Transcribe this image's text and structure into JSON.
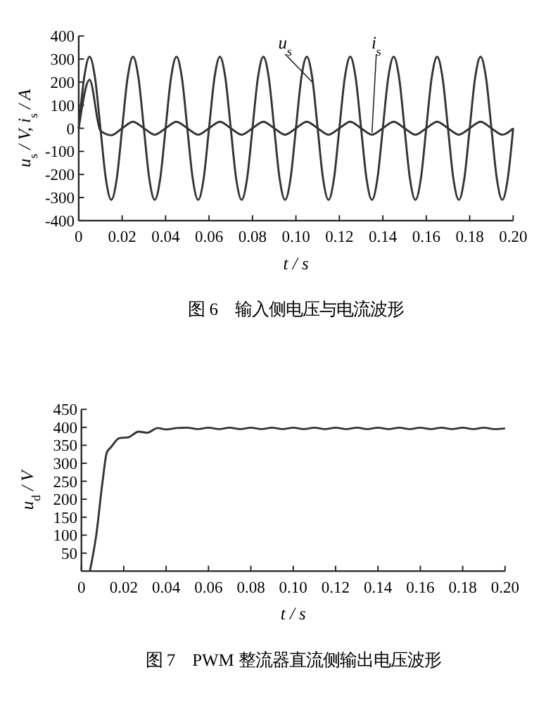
{
  "chart_data": [
    {
      "type": "line",
      "title": "图 6　输入侧电压与电流波形",
      "xlabel": "t / s",
      "ylabel": "u$_{s}$ / V, i$_{s}$ / A",
      "xlim": [
        0,
        0.2
      ],
      "xticks": [
        {
          "value": 0,
          "label": "0"
        },
        {
          "value": 0.02,
          "label": "0.02"
        },
        {
          "value": 0.04,
          "label": "0.04"
        },
        {
          "value": 0.06,
          "label": "0.06"
        },
        {
          "value": 0.08,
          "label": "0.08"
        },
        {
          "value": 0.1,
          "label": "0.10"
        },
        {
          "value": 0.12,
          "label": "0.12"
        },
        {
          "value": 0.14,
          "label": "0.14"
        },
        {
          "value": 0.16,
          "label": "0.16"
        },
        {
          "value": 0.18,
          "label": "0.18"
        },
        {
          "value": 0.2,
          "label": "0.20"
        }
      ],
      "ylim": [
        -400,
        400
      ],
      "yticks": [
        -400,
        -300,
        -200,
        -100,
        0,
        100,
        200,
        300,
        400
      ],
      "series": [
        {
          "name": "u$_{s}$",
          "color": "#333333",
          "x": [
            0,
            0.0025,
            0.005,
            0.0075,
            0.01,
            0.0125,
            0.015,
            0.0175,
            0.02,
            0.0225,
            0.025,
            0.0275,
            0.03,
            0.0325,
            0.035,
            0.0375,
            0.04,
            0.0425,
            0.045,
            0.0475,
            0.05,
            0.0525,
            0.055,
            0.0575,
            0.06,
            0.0625,
            0.065,
            0.0675,
            0.07,
            0.0725,
            0.075,
            0.0775,
            0.08,
            0.0825,
            0.085,
            0.0875,
            0.09,
            0.0925,
            0.095,
            0.0975,
            0.1,
            0.1025,
            0.105,
            0.1075,
            0.11,
            0.1125,
            0.115,
            0.1175,
            0.12,
            0.1225,
            0.125,
            0.1275,
            0.13,
            0.1325,
            0.135,
            0.1375,
            0.14,
            0.1425,
            0.145,
            0.1475,
            0.15,
            0.1525,
            0.155,
            0.1575,
            0.16,
            0.1625,
            0.165,
            0.1675,
            0.17,
            0.1725,
            0.175,
            0.1775,
            0.18,
            0.1825,
            0.185,
            0.1875,
            0.19,
            0.1925,
            0.195,
            0.1975,
            0.2
          ],
          "values": [
            0,
            219,
            310,
            219,
            0,
            -219,
            -310,
            -219,
            0,
            219,
            310,
            219,
            0,
            -219,
            -310,
            -219,
            0,
            219,
            310,
            219,
            0,
            -219,
            -310,
            -219,
            0,
            219,
            310,
            219,
            0,
            -219,
            -310,
            -219,
            0,
            219,
            310,
            219,
            0,
            -219,
            -310,
            -219,
            0,
            219,
            310,
            219,
            0,
            -219,
            -310,
            -219,
            0,
            219,
            310,
            219,
            0,
            -219,
            -310,
            -219,
            0,
            219,
            310,
            219,
            0,
            -219,
            -310,
            -219,
            0,
            219,
            310,
            219,
            0,
            -219,
            -310,
            -219,
            0,
            219,
            310,
            219,
            0,
            -219,
            -310,
            -219,
            0
          ]
        },
        {
          "name": "i$_{s}$",
          "color": "#333333",
          "x": [
            0,
            0.005,
            0.01,
            0.015,
            0.02,
            0.025,
            0.03,
            0.035,
            0.04,
            0.045,
            0.05,
            0.055,
            0.06,
            0.065,
            0.07,
            0.075,
            0.08,
            0.085,
            0.09,
            0.095,
            0.1,
            0.105,
            0.11,
            0.115,
            0.12,
            0.125,
            0.13,
            0.135,
            0.14,
            0.145,
            0.15,
            0.155,
            0.16,
            0.165,
            0.17,
            0.175,
            0.18,
            0.185,
            0.19,
            0.195,
            0.2
          ],
          "values": [
            0,
            210,
            -10,
            -30,
            0,
            28,
            0,
            -28,
            0,
            28,
            0,
            -28,
            0,
            28,
            0,
            -28,
            0,
            28,
            0,
            -28,
            0,
            28,
            0,
            -28,
            0,
            28,
            0,
            -28,
            0,
            28,
            0,
            -28,
            0,
            28,
            0,
            -28,
            0,
            28,
            0,
            -28,
            0
          ]
        }
      ]
    },
    {
      "type": "line",
      "title": "图 7　PWM 整流器直流侧输出电压波形",
      "xlabel": "t / s",
      "ylabel": "u$_{d}$ / V",
      "xlim": [
        0,
        0.2
      ],
      "xticks": [
        {
          "value": 0,
          "label": "0"
        },
        {
          "value": 0.02,
          "label": "0.02"
        },
        {
          "value": 0.04,
          "label": "0.04"
        },
        {
          "value": 0.06,
          "label": "0.06"
        },
        {
          "value": 0.08,
          "label": "0.08"
        },
        {
          "value": 0.1,
          "label": "0.10"
        },
        {
          "value": 0.12,
          "label": "0.12"
        },
        {
          "value": 0.14,
          "label": "0.14"
        },
        {
          "value": 0.16,
          "label": "0.16"
        },
        {
          "value": 0.18,
          "label": "0.18"
        },
        {
          "value": 0.2,
          "label": "0.20"
        }
      ],
      "ylim": [
        0,
        450
      ],
      "yticks": [
        50,
        100,
        150,
        200,
        250,
        300,
        350,
        400,
        450
      ],
      "series": [
        {
          "color": "#333333",
          "x": [
            0.004,
            0.007,
            0.01,
            0.012,
            0.014,
            0.018,
            0.022,
            0.027,
            0.031,
            0.036,
            0.04,
            0.045,
            0.05,
            0.055,
            0.06,
            0.065,
            0.07,
            0.075,
            0.08,
            0.085,
            0.09,
            0.095,
            0.1,
            0.105,
            0.11,
            0.115,
            0.12,
            0.125,
            0.13,
            0.135,
            0.14,
            0.145,
            0.15,
            0.155,
            0.16,
            0.165,
            0.17,
            0.175,
            0.18,
            0.185,
            0.19,
            0.195,
            0.2
          ],
          "values": [
            0,
            100,
            250,
            330,
            345,
            370,
            372,
            388,
            385,
            398,
            394,
            398,
            399,
            395,
            399,
            395,
            399,
            395,
            399,
            395,
            399,
            395,
            399,
            395,
            399,
            395,
            399,
            395,
            399,
            395,
            399,
            395,
            399,
            395,
            399,
            395,
            399,
            395,
            399,
            395,
            399,
            395,
            397
          ]
        }
      ]
    }
  ]
}
